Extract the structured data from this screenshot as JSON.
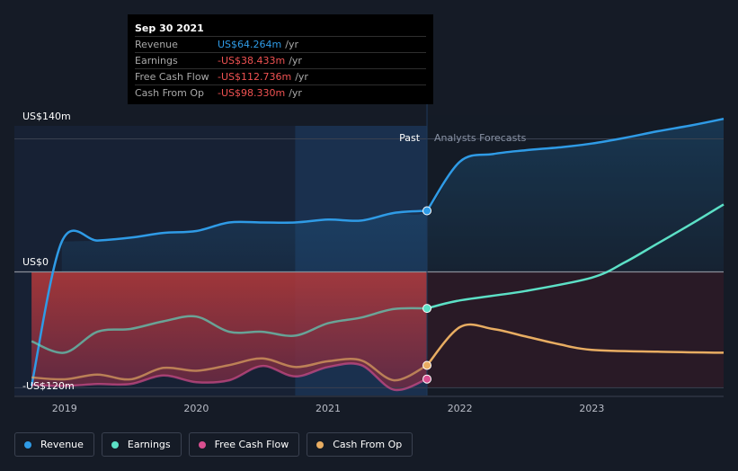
{
  "tooltip": {
    "date": "Sep 30 2021",
    "rows": [
      {
        "label": "Revenue",
        "value": "US$64.264m",
        "unit": "/yr",
        "color": "#2f9be6"
      },
      {
        "label": "Earnings",
        "value": "-US$38.433m",
        "unit": "/yr",
        "color": "#f05252"
      },
      {
        "label": "Free Cash Flow",
        "value": "-US$112.736m",
        "unit": "/yr",
        "color": "#f05252"
      },
      {
        "label": "Cash From Op",
        "value": "-US$98.330m",
        "unit": "/yr",
        "color": "#f05252"
      }
    ]
  },
  "chart_data": {
    "type": "line",
    "y_unit": "US$m",
    "ylim": [
      -130,
      165
    ],
    "y_ticks": [
      {
        "value": 140,
        "label": "US$140m"
      },
      {
        "value": 0,
        "label": "US$0"
      },
      {
        "value": -120,
        "label": "-US$120m"
      }
    ],
    "x_range": [
      2018.62,
      2024.0
    ],
    "x_ticks": [
      {
        "value": 2019,
        "label": "2019"
      },
      {
        "value": 2020,
        "label": "2020"
      },
      {
        "value": 2021,
        "label": "2021"
      },
      {
        "value": 2022,
        "label": "2022"
      },
      {
        "value": 2023,
        "label": "2023"
      }
    ],
    "past_label": "Past",
    "forecast_label": "Analysts Forecasts",
    "divider_x": 2021.75,
    "highlight_range": [
      2020.75,
      2021.75
    ],
    "series": [
      {
        "name": "Revenue",
        "color": "#2f9be6",
        "past": [
          [
            2018.75,
            -120
          ],
          [
            2018.98,
            32
          ],
          [
            2019.25,
            33
          ],
          [
            2019.5,
            36
          ],
          [
            2019.75,
            41
          ],
          [
            2020.0,
            43
          ],
          [
            2020.25,
            52
          ],
          [
            2020.5,
            52
          ],
          [
            2020.75,
            52
          ],
          [
            2021.0,
            55
          ],
          [
            2021.25,
            54
          ],
          [
            2021.5,
            62
          ],
          [
            2021.75,
            64.3
          ]
        ],
        "forecast": [
          [
            2021.75,
            64.3
          ],
          [
            2022.0,
            116
          ],
          [
            2022.25,
            124
          ],
          [
            2022.5,
            128
          ],
          [
            2022.75,
            131
          ],
          [
            2023.0,
            135
          ],
          [
            2023.25,
            141
          ],
          [
            2023.5,
            148
          ],
          [
            2023.75,
            154
          ],
          [
            2024.0,
            161
          ]
        ]
      },
      {
        "name": "Earnings",
        "color": "#5ce0c6",
        "past": [
          [
            2018.75,
            -73
          ],
          [
            2019.0,
            -85
          ],
          [
            2019.25,
            -63
          ],
          [
            2019.5,
            -60
          ],
          [
            2019.75,
            -52
          ],
          [
            2020.0,
            -47
          ],
          [
            2020.25,
            -63
          ],
          [
            2020.5,
            -63
          ],
          [
            2020.75,
            -67
          ],
          [
            2021.0,
            -54
          ],
          [
            2021.25,
            -48
          ],
          [
            2021.5,
            -39
          ],
          [
            2021.75,
            -38.4
          ]
        ],
        "forecast": [
          [
            2021.75,
            -38.4
          ],
          [
            2022.0,
            -30
          ],
          [
            2022.5,
            -20
          ],
          [
            2023.0,
            -6
          ],
          [
            2023.25,
            10
          ],
          [
            2023.5,
            30
          ],
          [
            2023.75,
            50
          ],
          [
            2024.0,
            71
          ]
        ]
      },
      {
        "name": "Free Cash Flow",
        "color": "#d94f90",
        "past": [
          [
            2018.75,
            -119
          ],
          [
            2019.0,
            -120
          ],
          [
            2019.25,
            -118
          ],
          [
            2019.5,
            -118
          ],
          [
            2019.75,
            -109
          ],
          [
            2020.0,
            -116
          ],
          [
            2020.25,
            -114
          ],
          [
            2020.5,
            -99
          ],
          [
            2020.75,
            -110
          ],
          [
            2021.0,
            -100
          ],
          [
            2021.25,
            -98
          ],
          [
            2021.5,
            -124
          ],
          [
            2021.75,
            -112.7
          ]
        ],
        "forecast": []
      },
      {
        "name": "Cash From Op",
        "color": "#e8ad62",
        "past": [
          [
            2018.75,
            -111
          ],
          [
            2019.0,
            -113
          ],
          [
            2019.25,
            -108
          ],
          [
            2019.5,
            -113
          ],
          [
            2019.75,
            -101
          ],
          [
            2020.0,
            -104
          ],
          [
            2020.25,
            -98
          ],
          [
            2020.5,
            -91
          ],
          [
            2020.75,
            -100
          ],
          [
            2021.0,
            -94
          ],
          [
            2021.25,
            -93
          ],
          [
            2021.5,
            -114
          ],
          [
            2021.75,
            -98.3
          ]
        ],
        "forecast": [
          [
            2021.75,
            -98.3
          ],
          [
            2022.0,
            -58
          ],
          [
            2022.25,
            -60
          ],
          [
            2022.5,
            -68
          ],
          [
            2022.75,
            -76
          ],
          [
            2023.0,
            -82
          ],
          [
            2023.5,
            -84
          ],
          [
            2024.0,
            -85
          ]
        ]
      }
    ]
  },
  "legend": [
    {
      "label": "Revenue",
      "color": "#2f9be6"
    },
    {
      "label": "Earnings",
      "color": "#5ce0c6"
    },
    {
      "label": "Free Cash Flow",
      "color": "#d94f90"
    },
    {
      "label": "Cash From Op",
      "color": "#e8ad62"
    }
  ]
}
